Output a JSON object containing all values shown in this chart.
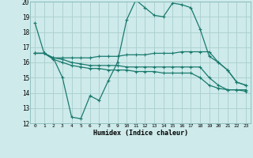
{
  "xlabel": "Humidex (Indice chaleur)",
  "xlim": [
    -0.5,
    23.5
  ],
  "ylim": [
    12,
    20
  ],
  "yticks": [
    12,
    13,
    14,
    15,
    16,
    17,
    18,
    19,
    20
  ],
  "xticks": [
    0,
    1,
    2,
    3,
    4,
    5,
    6,
    7,
    8,
    9,
    10,
    11,
    12,
    13,
    14,
    15,
    16,
    17,
    18,
    19,
    20,
    21,
    22,
    23
  ],
  "bg_color": "#ceeaea",
  "grid_color": "#aacece",
  "line_color": "#1a7a6e",
  "lines": [
    [
      18.6,
      16.6,
      16.3,
      15.0,
      12.4,
      12.3,
      13.8,
      13.5,
      14.8,
      16.0,
      18.8,
      20.1,
      19.6,
      19.1,
      19.0,
      19.9,
      19.8,
      19.6,
      18.2,
      16.4,
      16.0,
      15.5,
      14.7,
      14.5
    ],
    [
      16.6,
      16.6,
      16.3,
      16.3,
      16.3,
      16.3,
      16.3,
      16.4,
      16.4,
      16.4,
      16.5,
      16.5,
      16.5,
      16.6,
      16.6,
      16.6,
      16.7,
      16.7,
      16.7,
      16.7,
      16.0,
      15.5,
      14.7,
      14.5
    ],
    [
      16.6,
      16.6,
      16.3,
      16.2,
      16.0,
      15.9,
      15.8,
      15.8,
      15.8,
      15.8,
      15.7,
      15.7,
      15.7,
      15.7,
      15.7,
      15.7,
      15.7,
      15.7,
      15.7,
      15.0,
      14.5,
      14.2,
      14.2,
      14.2
    ],
    [
      16.6,
      16.6,
      16.2,
      16.0,
      15.8,
      15.7,
      15.6,
      15.6,
      15.5,
      15.5,
      15.5,
      15.4,
      15.4,
      15.4,
      15.3,
      15.3,
      15.3,
      15.3,
      15.0,
      14.5,
      14.3,
      14.2,
      14.2,
      14.1
    ]
  ]
}
